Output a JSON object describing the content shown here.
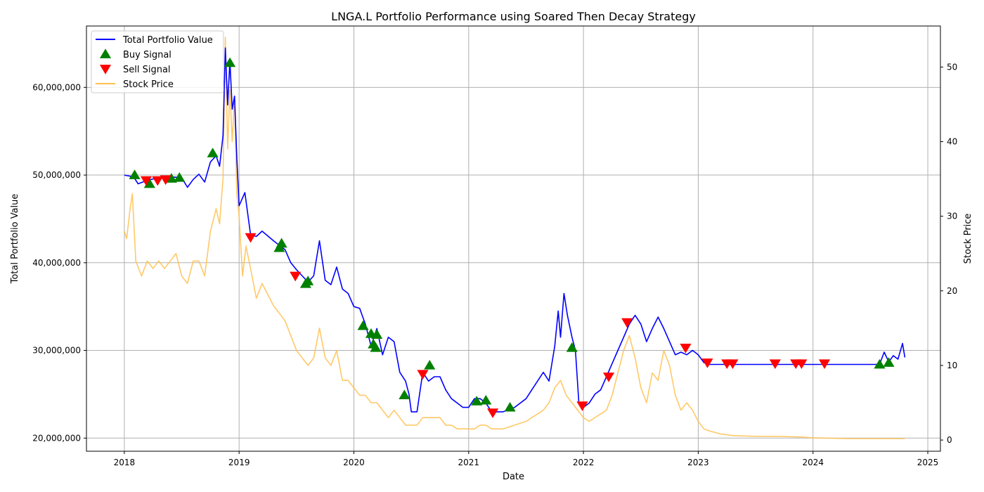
{
  "chart_data": {
    "type": "line",
    "title": "LNGA.L Portfolio Performance using Soared Then Decay Strategy",
    "xlabel": "Date",
    "ylabel": "Total Portfolio Value",
    "ylabel_right": "Stock Price",
    "xlim": [
      2017.67,
      2025.11
    ],
    "ylim": [
      18500000,
      67000000
    ],
    "ylim_right": [
      -1.5,
      55.5
    ],
    "x_ticks": [
      2018,
      2019,
      2020,
      2021,
      2022,
      2023,
      2024,
      2025
    ],
    "x_tick_labels": [
      "2018",
      "2019",
      "2020",
      "2021",
      "2022",
      "2023",
      "2024",
      "2025"
    ],
    "y_ticks": [
      20000000,
      30000000,
      40000000,
      50000000,
      60000000
    ],
    "y_tick_labels": [
      "20,000,000",
      "30,000,000",
      "40,000,000",
      "50,000,000",
      "60,000,000"
    ],
    "y_ticks_right": [
      0,
      10,
      20,
      30,
      40,
      50
    ],
    "y_tick_labels_right": [
      "0",
      "10",
      "20",
      "30",
      "40",
      "50"
    ],
    "grid": true,
    "legend_position": "top-left",
    "colors": {
      "portfolio": "#0000ff",
      "stock": "#ffc04d",
      "buy": "#008000",
      "sell": "#ff0000"
    },
    "series": [
      {
        "name": "Total Portfolio Value",
        "axis": "left",
        "x": [
          2018.0,
          2018.08,
          2018.12,
          2018.2,
          2018.3,
          2018.4,
          2018.5,
          2018.55,
          2018.6,
          2018.65,
          2018.7,
          2018.75,
          2018.8,
          2018.83,
          2018.86,
          2018.88,
          2018.9,
          2018.92,
          2018.94,
          2018.96,
          2018.98,
          2019.0,
          2019.05,
          2019.1,
          2019.15,
          2019.2,
          2019.3,
          2019.4,
          2019.45,
          2019.5,
          2019.55,
          2019.6,
          2019.65,
          2019.7,
          2019.75,
          2019.8,
          2019.85,
          2019.9,
          2019.95,
          2020.0,
          2020.05,
          2020.1,
          2020.15,
          2020.2,
          2020.25,
          2020.3,
          2020.35,
          2020.4,
          2020.45,
          2020.48,
          2020.5,
          2020.55,
          2020.6,
          2020.65,
          2020.7,
          2020.75,
          2020.8,
          2020.85,
          2020.9,
          2020.95,
          2021.0,
          2021.05,
          2021.1,
          2021.15,
          2021.2,
          2021.3,
          2021.4,
          2021.5,
          2021.55,
          2021.6,
          2021.65,
          2021.7,
          2021.75,
          2021.78,
          2021.8,
          2021.83,
          2021.86,
          2021.9,
          2021.93,
          2021.96,
          2022.0,
          2022.05,
          2022.1,
          2022.15,
          2022.2,
          2022.25,
          2022.3,
          2022.35,
          2022.4,
          2022.45,
          2022.5,
          2022.55,
          2022.6,
          2022.65,
          2022.7,
          2022.75,
          2022.8,
          2022.85,
          2022.9,
          2022.95,
          2023.0,
          2023.05,
          2023.1,
          2023.5,
          2024.0,
          2024.5,
          2024.58,
          2024.62,
          2024.66,
          2024.7,
          2024.74,
          2024.78,
          2024.8
        ],
        "y": [
          50000000,
          49800000,
          49000000,
          49400000,
          49700000,
          49800000,
          49700000,
          48600000,
          49500000,
          50100000,
          49200000,
          51500000,
          52200000,
          51000000,
          54500000,
          64500000,
          58000000,
          63000000,
          57500000,
          59000000,
          52000000,
          46500000,
          48000000,
          43200000,
          43000000,
          43600000,
          42500000,
          41500000,
          40000000,
          39200000,
          38500000,
          37800000,
          38500000,
          42500000,
          38000000,
          37500000,
          39500000,
          37000000,
          36500000,
          35000000,
          34800000,
          33000000,
          30500000,
          32500000,
          29500000,
          31500000,
          31000000,
          27500000,
          26500000,
          25000000,
          23000000,
          23000000,
          27500000,
          26500000,
          27000000,
          27000000,
          25500000,
          24500000,
          24000000,
          23500000,
          23500000,
          24500000,
          24500000,
          24000000,
          23000000,
          23000000,
          23500000,
          24500000,
          25500000,
          26500000,
          27500000,
          26500000,
          30500000,
          34500000,
          31500000,
          36500000,
          34000000,
          31500000,
          30000000,
          24000000,
          23500000,
          24000000,
          25000000,
          25500000,
          27000000,
          28500000,
          30000000,
          31500000,
          33000000,
          34000000,
          33000000,
          31000000,
          32500000,
          33800000,
          32500000,
          31000000,
          29500000,
          29800000,
          29500000,
          30000000,
          29500000,
          28600000,
          28400000,
          28400000,
          28400000,
          28400000,
          28400000,
          29800000,
          28700000,
          29400000,
          29000000,
          30800000,
          29200000
        ]
      },
      {
        "name": "Stock Price",
        "axis": "right",
        "x": [
          2018.0,
          2018.02,
          2018.05,
          2018.07,
          2018.1,
          2018.15,
          2018.2,
          2018.25,
          2018.3,
          2018.35,
          2018.4,
          2018.45,
          2018.5,
          2018.55,
          2018.6,
          2018.65,
          2018.7,
          2018.75,
          2018.8,
          2018.83,
          2018.86,
          2018.88,
          2018.9,
          2018.92,
          2018.94,
          2018.96,
          2018.98,
          2019.0,
          2019.03,
          2019.06,
          2019.1,
          2019.15,
          2019.2,
          2019.3,
          2019.4,
          2019.45,
          2019.5,
          2019.55,
          2019.6,
          2019.65,
          2019.7,
          2019.75,
          2019.8,
          2019.85,
          2019.9,
          2019.95,
          2020.0,
          2020.05,
          2020.1,
          2020.15,
          2020.2,
          2020.25,
          2020.3,
          2020.35,
          2020.4,
          2020.45,
          2020.5,
          2020.55,
          2020.6,
          2020.65,
          2020.7,
          2020.75,
          2020.8,
          2020.85,
          2020.9,
          2020.95,
          2021.0,
          2021.05,
          2021.1,
          2021.15,
          2021.2,
          2021.3,
          2021.4,
          2021.5,
          2021.55,
          2021.6,
          2021.65,
          2021.7,
          2021.75,
          2021.8,
          2021.85,
          2021.9,
          2021.95,
          2022.0,
          2022.05,
          2022.1,
          2022.15,
          2022.2,
          2022.25,
          2022.3,
          2022.35,
          2022.4,
          2022.45,
          2022.5,
          2022.55,
          2022.6,
          2022.65,
          2022.7,
          2022.75,
          2022.8,
          2022.85,
          2022.9,
          2022.95,
          2023.0,
          2023.05,
          2023.1,
          2023.2,
          2023.3,
          2023.5,
          2023.7,
          2023.9,
          2024.0,
          2024.3,
          2024.6,
          2024.8
        ],
        "y": [
          28,
          27,
          31,
          33,
          24,
          22,
          24,
          23,
          24,
          23,
          24,
          25,
          22,
          21,
          24,
          24,
          22,
          28,
          31,
          29,
          35,
          54,
          39,
          47,
          40,
          46,
          33,
          30,
          22,
          26,
          23,
          19,
          21,
          18,
          16,
          14,
          12,
          11,
          10,
          11,
          15,
          11,
          10,
          12,
          8,
          8,
          7,
          6,
          6,
          5,
          5,
          4,
          3,
          4,
          3,
          2,
          2,
          2,
          3,
          3,
          3,
          3,
          2,
          2,
          1.5,
          1.5,
          1.5,
          1.5,
          2,
          2,
          1.5,
          1.5,
          2,
          2.5,
          3,
          3.5,
          4,
          5,
          7,
          8,
          6,
          5,
          4,
          3,
          2.5,
          3,
          3.5,
          4,
          6,
          9,
          12,
          14,
          11,
          7,
          5,
          9,
          8,
          12,
          10,
          6,
          4,
          5,
          4,
          2.5,
          1.5,
          1.2,
          0.8,
          0.6,
          0.5,
          0.5,
          0.4,
          0.3,
          0.2,
          0.2,
          0.2
        ]
      }
    ],
    "markers": [
      {
        "name": "Buy Signal",
        "axis": "left",
        "shape": "triangle-up",
        "x": [
          2018.09,
          2018.22,
          2018.41,
          2018.48,
          2018.77,
          2018.92,
          2019.35,
          2019.37,
          2019.58,
          2019.6,
          2020.08,
          2020.15,
          2020.17,
          2020.19,
          2020.2,
          2020.44,
          2020.66,
          2021.07,
          2021.15,
          2021.36,
          2021.9,
          2024.58,
          2024.66
        ],
        "y": [
          50000000,
          49000000,
          49600000,
          49700000,
          52500000,
          62800000,
          41700000,
          42200000,
          37600000,
          37900000,
          32800000,
          31900000,
          30700000,
          30300000,
          31800000,
          24900000,
          28300000,
          24200000,
          24300000,
          23500000,
          30300000,
          28400000,
          28600000
        ]
      },
      {
        "name": "Sell Signal",
        "axis": "left",
        "shape": "triangle-down",
        "x": [
          2018.19,
          2018.29,
          2018.36,
          2019.1,
          2019.49,
          2020.6,
          2021.21,
          2021.99,
          2022.22,
          2022.38,
          2022.89,
          2023.08,
          2023.25,
          2023.3,
          2023.67,
          2023.85,
          2023.9,
          2024.1
        ],
        "y": [
          49400000,
          49400000,
          49500000,
          42900000,
          38500000,
          27300000,
          22900000,
          23700000,
          27000000,
          33200000,
          30300000,
          28600000,
          28500000,
          28500000,
          28500000,
          28500000,
          28500000,
          28500000
        ]
      }
    ],
    "legend": [
      "Total Portfolio Value",
      "Buy Signal",
      "Sell Signal",
      "Stock Price"
    ]
  }
}
